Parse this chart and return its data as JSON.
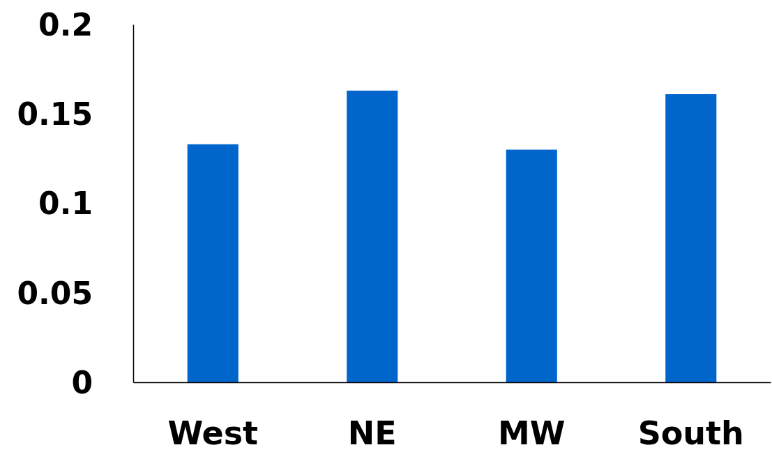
{
  "chart_data": {
    "type": "bar",
    "categories": [
      "West",
      "NE",
      "MW",
      "South"
    ],
    "values": [
      0.133,
      0.163,
      0.13,
      0.161
    ],
    "color": "#0066cc",
    "ylim": [
      0,
      0.2
    ],
    "yticks": [
      0,
      0.05,
      0.1,
      0.15,
      0.2
    ],
    "grid": false
  }
}
